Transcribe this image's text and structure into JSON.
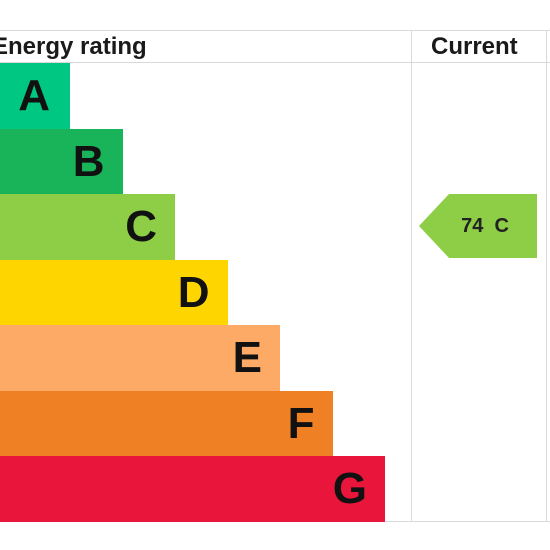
{
  "header": {
    "rating_title": "Energy rating",
    "current_title": "Current"
  },
  "chart_data": {
    "type": "bar",
    "title": "",
    "categories": [
      "A",
      "B",
      "C",
      "D",
      "E",
      "F",
      "G"
    ],
    "band_colors": [
      "#00c781",
      "#19b459",
      "#8dce46",
      "#ffd500",
      "#fcaa65",
      "#ef8023",
      "#e9153b"
    ],
    "current": {
      "score": "74",
      "band": "C",
      "label": "74  C",
      "color": "#8dce46"
    }
  }
}
